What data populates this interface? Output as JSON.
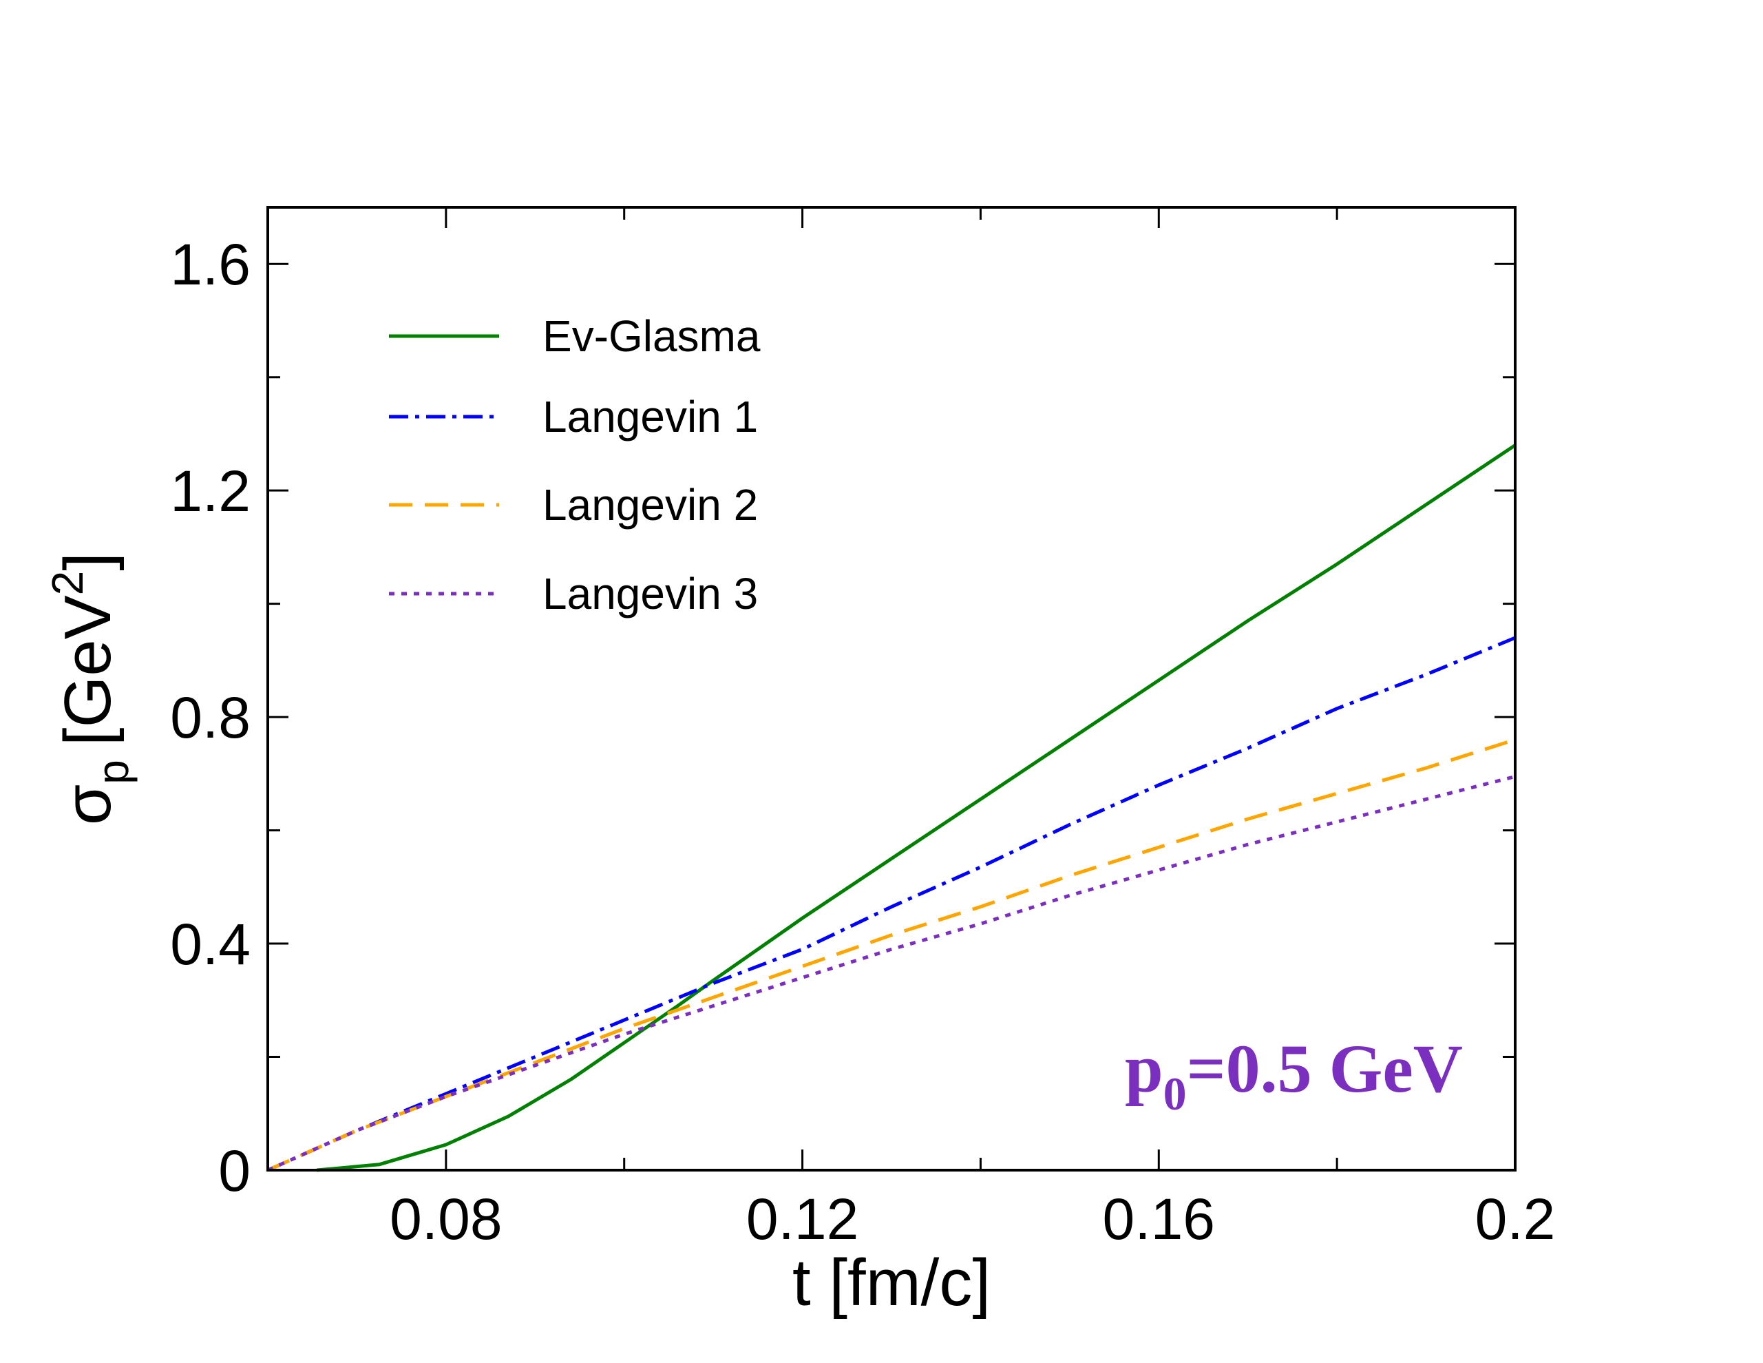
{
  "chart_data": {
    "type": "line",
    "title": "",
    "xlabel": "t [fm/c]",
    "ylabel": {
      "symbol": "σ",
      "subscript": "p",
      "unit_prefix": "[GeV",
      "unit_superscript": "2",
      "unit_suffix": "]"
    },
    "xlim": [
      0.06,
      0.2
    ],
    "ylim": [
      0,
      1.7
    ],
    "x_major_ticks": [
      0.08,
      0.12,
      0.16,
      0.2
    ],
    "x_tick_labels": [
      "0.08",
      "0.12",
      "0.16",
      "0.2"
    ],
    "x_minor_ticks": [
      0.06,
      0.1,
      0.14,
      0.18
    ],
    "y_major_ticks": [
      0,
      0.4,
      0.8,
      1.2,
      1.6
    ],
    "y_tick_labels": [
      "0",
      "0.4",
      "0.8",
      "1.2",
      "1.6"
    ],
    "y_minor_ticks": [
      0.2,
      0.6,
      1.0,
      1.4
    ],
    "grid": false,
    "legend_position": "top-left",
    "series": [
      {
        "name": "Ev-Glasma",
        "color": "#008000",
        "style": "solid",
        "x": [
          0.0655,
          0.0725,
          0.08,
          0.087,
          0.094,
          0.1,
          0.106,
          0.11,
          0.115,
          0.12,
          0.13,
          0.14,
          0.15,
          0.16,
          0.17,
          0.18,
          0.19,
          0.2
        ],
        "y": [
          0.0,
          0.01,
          0.045,
          0.095,
          0.16,
          0.225,
          0.29,
          0.335,
          0.39,
          0.445,
          0.55,
          0.655,
          0.76,
          0.865,
          0.97,
          1.07,
          1.175,
          1.28
        ]
      },
      {
        "name": "Langevin 1",
        "color": "#0000ff",
        "style": "dashdot",
        "x": [
          0.06,
          0.07,
          0.08,
          0.09,
          0.1,
          0.11,
          0.12,
          0.13,
          0.14,
          0.15,
          0.16,
          0.17,
          0.18,
          0.19,
          0.2
        ],
        "y": [
          0.0,
          0.07,
          0.135,
          0.2,
          0.265,
          0.33,
          0.39,
          0.465,
          0.535,
          0.61,
          0.68,
          0.745,
          0.815,
          0.875,
          0.94
        ]
      },
      {
        "name": "Langevin 2",
        "color": "#ffa500",
        "style": "dashed",
        "x": [
          0.06,
          0.07,
          0.08,
          0.09,
          0.1,
          0.11,
          0.12,
          0.13,
          0.14,
          0.15,
          0.16,
          0.17,
          0.18,
          0.19,
          0.2
        ],
        "y": [
          0.0,
          0.07,
          0.13,
          0.19,
          0.25,
          0.305,
          0.36,
          0.415,
          0.465,
          0.52,
          0.57,
          0.62,
          0.665,
          0.71,
          0.76
        ]
      },
      {
        "name": "Langevin 3",
        "color": "#7b2fbe",
        "style": "dotted",
        "x": [
          0.06,
          0.07,
          0.08,
          0.09,
          0.1,
          0.11,
          0.12,
          0.13,
          0.14,
          0.15,
          0.16,
          0.17,
          0.18,
          0.19,
          0.2
        ],
        "y": [
          0.0,
          0.07,
          0.13,
          0.185,
          0.24,
          0.29,
          0.34,
          0.39,
          0.435,
          0.485,
          0.53,
          0.575,
          0.615,
          0.655,
          0.695
        ]
      }
    ],
    "annotation": {
      "base": "p",
      "subscript": "0",
      "rest": "=0.5 GeV",
      "color": "#7b2fbe",
      "position": "bottom-right"
    }
  }
}
